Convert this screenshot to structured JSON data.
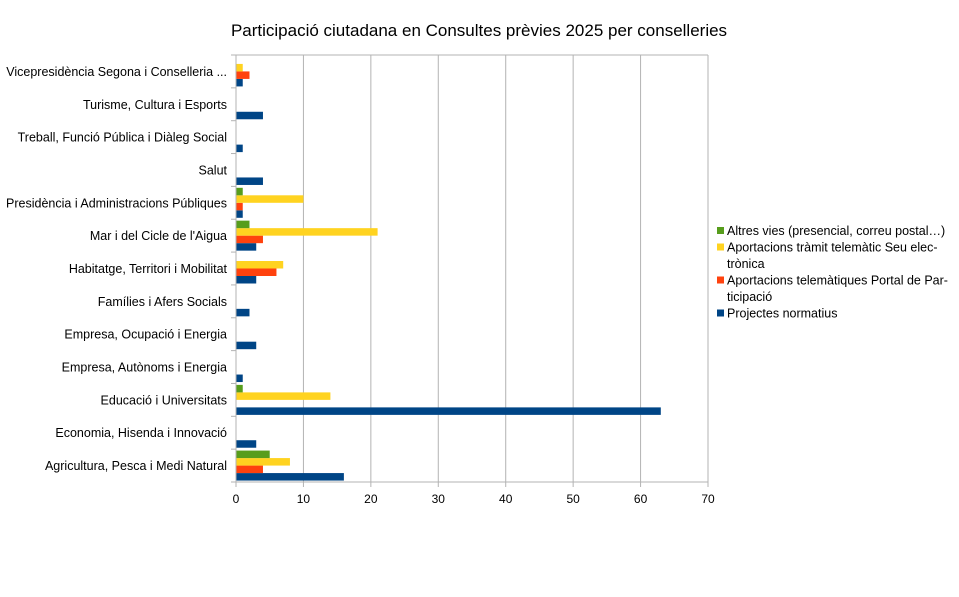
{
  "chart_data": {
    "type": "bar",
    "orientation": "horizontal",
    "title": "Participació ciutadana en Consultes prèvies 2025 per conselleries",
    "xlabel": "",
    "ylabel": "",
    "xlim": [
      0,
      70
    ],
    "x_ticks": [
      0,
      10,
      20,
      30,
      40,
      50,
      60,
      70
    ],
    "grid": "vertical",
    "legend_position": "right",
    "categories": [
      "Agricultura, Pesca i Medi Natural",
      "Economia, Hisenda i Innovació",
      "Educació i Universitats",
      "Empresa, Autònoms i Energia",
      "Empresa, Ocupació i Energia",
      "Famílies i Afers Socials",
      "Habitatge, Territori i Mobilitat",
      "Mar i del Cicle de l'Aigua",
      "Presidència i Administracions Públiques",
      "Salut",
      "Treball, Funció Pública i Diàleg Social",
      "Turisme, Cultura i Esports",
      "Vicepresidència Segona i Conselleria ..."
    ],
    "series": [
      {
        "name": "Projectes normatius",
        "color": "#004586",
        "values": [
          16,
          3,
          63,
          1,
          3,
          2,
          3,
          3,
          1,
          4,
          1,
          4,
          1
        ]
      },
      {
        "name": "Aportacions telemàtiques Portal de Participació",
        "legend_lines": [
          "Aportacions telemàtiques Portal de Par-",
          "ticipació"
        ],
        "color": "#ff420e",
        "values": [
          4,
          0,
          0,
          0,
          0,
          0,
          6,
          4,
          1,
          0,
          0,
          0,
          2
        ]
      },
      {
        "name": "Aportacions tràmit telemàtic Seu electrònica",
        "legend_lines": [
          "Aportacions tràmit telemàtic Seu elec-",
          "trònica"
        ],
        "color": "#ffd320",
        "values": [
          8,
          0,
          14,
          0,
          0,
          0,
          7,
          21,
          10,
          0,
          0,
          0,
          1
        ]
      },
      {
        "name": "Altres vies (presencial, correu postal…)",
        "legend_lines": [
          "Altres vies (presencial, correu postal…)"
        ],
        "color": "#579d1c",
        "values": [
          5,
          0,
          1,
          0,
          0,
          0,
          0,
          2,
          1,
          0,
          0,
          0,
          0
        ]
      }
    ]
  }
}
